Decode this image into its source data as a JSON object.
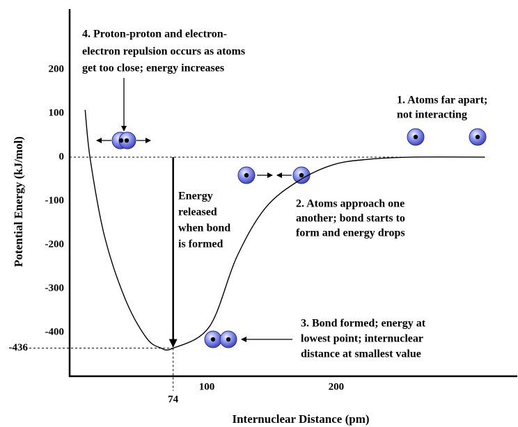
{
  "chart_data": {
    "type": "line",
    "x_label": "Internuclear Distance (pm)",
    "y_label": "Potential Energy (kJ/mol)",
    "xlim": [
      -6,
      340
    ],
    "ylim": [
      -500,
      330
    ],
    "xticks": [
      74,
      100,
      200
    ],
    "yticks": [
      -436,
      -400,
      -300,
      -200,
      -100,
      0,
      100,
      200
    ],
    "color": "#000000",
    "x": [
      6,
      10,
      21,
      37,
      53,
      64,
      74,
      102,
      123,
      145,
      171,
      198,
      225,
      258,
      315
    ],
    "values": [
      108,
      -6,
      -181,
      -324,
      -411,
      -435,
      -436,
      -387,
      -229,
      -117,
      -54,
      -17,
      -5,
      0,
      0
    ],
    "annotations": [
      [
        "4. Proton-proton and electron-",
        "electron repulsion occurs as atoms",
        "get too close; energy increases"
      ],
      [
        "1. Atoms far apart;",
        "not interacting"
      ],
      [
        "2. Atoms approach one",
        "another; bond starts to",
        "form and energy drops"
      ],
      [
        "3. Bond formed; energy at",
        "lowest point; internuclear",
        "distance at smallest value"
      ],
      [
        "Energy",
        "released",
        "when bond",
        "is formed"
      ]
    ]
  }
}
